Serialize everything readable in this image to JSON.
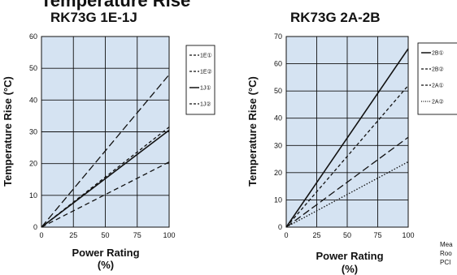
{
  "page": {
    "top_title": "Temperature Rise",
    "note_lines": [
      "Mea",
      "Roo",
      "PCI"
    ]
  },
  "chart_data": [
    {
      "type": "line",
      "title": "RK73G 1E-1J",
      "xlabel": "Power Rating",
      "xlabel_unit": "(%)",
      "ylabel": "Temperature Rise (°C)",
      "xlim": [
        0,
        100
      ],
      "ylim": [
        0,
        60
      ],
      "xticks": [
        0,
        25,
        50,
        75,
        100
      ],
      "yticks": [
        0,
        10,
        20,
        30,
        40,
        50,
        60
      ],
      "grid": true,
      "plot_background": "#d5e3f2",
      "legend_position": "right",
      "series": [
        {
          "name": "1E①",
          "x": [
            0,
            100
          ],
          "y": [
            0,
            48
          ],
          "style": "longdash",
          "color": "#111111"
        },
        {
          "name": "1E②",
          "x": [
            0,
            100
          ],
          "y": [
            0,
            31.5
          ],
          "style": "shortdash",
          "color": "#111111"
        },
        {
          "name": "1J①",
          "x": [
            0,
            100
          ],
          "y": [
            0,
            30.5
          ],
          "style": "solid",
          "color": "#111111"
        },
        {
          "name": "1J②",
          "x": [
            0,
            100
          ],
          "y": [
            0,
            20.5
          ],
          "style": "dash",
          "color": "#111111"
        }
      ]
    },
    {
      "type": "line",
      "title": "RK73G 2A-2B",
      "xlabel": "Power Rating",
      "xlabel_unit": "(%)",
      "ylabel": "Temperature Rise (°C)",
      "xlim": [
        0,
        100
      ],
      "ylim": [
        0,
        70
      ],
      "xticks": [
        0,
        25,
        50,
        75,
        100
      ],
      "yticks": [
        0,
        10,
        20,
        30,
        40,
        50,
        60,
        70
      ],
      "grid": true,
      "plot_background": "#d5e3f2",
      "legend_position": "right",
      "series": [
        {
          "name": "2B①",
          "x": [
            0,
            100
          ],
          "y": [
            0,
            65.5
          ],
          "style": "solid",
          "color": "#111111"
        },
        {
          "name": "2B②",
          "x": [
            0,
            100
          ],
          "y": [
            0,
            52
          ],
          "style": "shortdash",
          "color": "#111111"
        },
        {
          "name": "2A①",
          "x": [
            0,
            100
          ],
          "y": [
            0,
            33
          ],
          "style": "longdash",
          "color": "#111111"
        },
        {
          "name": "2A②",
          "x": [
            0,
            100
          ],
          "y": [
            0,
            24
          ],
          "style": "dot",
          "color": "#111111"
        }
      ]
    }
  ]
}
